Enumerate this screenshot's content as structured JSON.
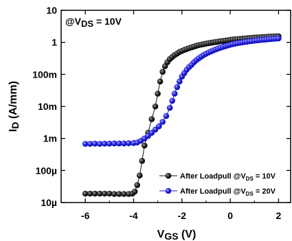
{
  "chart_data": {
    "type": "scatter",
    "annotation": {
      "text": "@V",
      "sub": "DS",
      "suffix": " = 10V"
    },
    "xlabel": {
      "main": "V",
      "sub": "GS",
      "suffix": " (V)"
    },
    "ylabel": {
      "main": "I",
      "sub": "D",
      "suffix": " (A/mm)"
    },
    "xlim": [
      -7,
      2.5
    ],
    "ylim": [
      1e-05,
      10
    ],
    "y_scale": "log",
    "x_ticks": [
      {
        "value": -6,
        "label": "-6"
      },
      {
        "value": -4,
        "label": "-4"
      },
      {
        "value": -2,
        "label": "-2"
      },
      {
        "value": 0,
        "label": "0"
      },
      {
        "value": 2,
        "label": "2"
      }
    ],
    "y_ticks": [
      {
        "value": 10,
        "label": "10"
      },
      {
        "value": 1,
        "label": "1"
      },
      {
        "value": 0.1,
        "label": "100m"
      },
      {
        "value": 0.01,
        "label": "10m"
      },
      {
        "value": 0.001,
        "label": "1m"
      },
      {
        "value": 0.0001,
        "label": "100µ"
      },
      {
        "value": 1e-05,
        "label": "10µ"
      }
    ],
    "legend_position": "bottom-right",
    "series": [
      {
        "name": {
          "prefix": "After Loadpull @V",
          "sub": "DS",
          "suffix": " = 10V"
        },
        "color": "#111111",
        "points": [
          [
            -6.0,
            1.9e-05
          ],
          [
            -5.8,
            1.9e-05
          ],
          [
            -5.6,
            1.9e-05
          ],
          [
            -5.4,
            1.9e-05
          ],
          [
            -5.2,
            1.9e-05
          ],
          [
            -5.0,
            1.9e-05
          ],
          [
            -4.8,
            1.85e-05
          ],
          [
            -4.6,
            1.85e-05
          ],
          [
            -4.4,
            1.85e-05
          ],
          [
            -4.2,
            1.85e-05
          ],
          [
            -4.05,
            1.9e-05
          ],
          [
            -3.95,
            2.2e-05
          ],
          [
            -3.85,
            3.5e-05
          ],
          [
            -3.75,
            7e-05
          ],
          [
            -3.65,
            0.0002
          ],
          [
            -3.55,
            0.0006
          ],
          [
            -3.4,
            0.0015
          ],
          [
            -3.25,
            0.004
          ],
          [
            -3.1,
            0.01
          ],
          [
            -3.0,
            0.025
          ],
          [
            -2.9,
            0.06
          ],
          [
            -2.8,
            0.12
          ],
          [
            -2.7,
            0.18
          ],
          [
            -2.6,
            0.24
          ],
          [
            -2.5,
            0.3
          ],
          [
            -2.4,
            0.35
          ],
          [
            -2.3,
            0.4
          ],
          [
            -2.2,
            0.45
          ],
          [
            -2.1,
            0.5
          ],
          [
            -2.0,
            0.54
          ],
          [
            -1.9,
            0.58
          ],
          [
            -1.8,
            0.62
          ],
          [
            -1.7,
            0.66
          ],
          [
            -1.6,
            0.7
          ],
          [
            -1.5,
            0.74
          ],
          [
            -1.4,
            0.78
          ],
          [
            -1.3,
            0.82
          ],
          [
            -1.2,
            0.85
          ],
          [
            -1.1,
            0.88
          ],
          [
            -1.0,
            0.91
          ],
          [
            -0.9,
            0.94
          ],
          [
            -0.8,
            0.97
          ],
          [
            -0.7,
            1.0
          ],
          [
            -0.6,
            1.02
          ],
          [
            -0.5,
            1.05
          ],
          [
            -0.4,
            1.08
          ],
          [
            -0.3,
            1.1
          ],
          [
            -0.2,
            1.13
          ],
          [
            -0.1,
            1.16
          ],
          [
            0.0,
            1.19
          ],
          [
            0.1,
            1.22
          ],
          [
            0.2,
            1.24
          ],
          [
            0.3,
            1.26
          ],
          [
            0.4,
            1.28
          ],
          [
            0.5,
            1.3
          ],
          [
            0.6,
            1.32
          ],
          [
            0.7,
            1.34
          ],
          [
            0.8,
            1.36
          ],
          [
            0.9,
            1.38
          ],
          [
            1.0,
            1.4
          ],
          [
            1.1,
            1.42
          ],
          [
            1.2,
            1.43
          ],
          [
            1.3,
            1.45
          ],
          [
            1.4,
            1.47
          ],
          [
            1.5,
            1.48
          ],
          [
            1.6,
            1.5
          ],
          [
            1.7,
            1.51
          ],
          [
            1.8,
            1.52
          ],
          [
            1.9,
            1.54
          ],
          [
            2.0,
            1.55
          ]
        ]
      },
      {
        "name": {
          "prefix": "After Loadpull @V",
          "sub": "DS",
          "suffix": " = 20V"
        },
        "color": "#1a1adc",
        "points": [
          [
            -6.0,
            0.00068
          ],
          [
            -5.8,
            0.00068
          ],
          [
            -5.6,
            0.00069
          ],
          [
            -5.4,
            0.00068
          ],
          [
            -5.2,
            0.00069
          ],
          [
            -5.0,
            0.00069
          ],
          [
            -4.8,
            0.0007
          ],
          [
            -4.6,
            0.0007
          ],
          [
            -4.4,
            0.0007
          ],
          [
            -4.2,
            0.00071
          ],
          [
            -4.0,
            0.00072
          ],
          [
            -3.85,
            0.00075
          ],
          [
            -3.7,
            0.00085
          ],
          [
            -3.55,
            0.001
          ],
          [
            -3.4,
            0.0012
          ],
          [
            -3.25,
            0.0015
          ],
          [
            -3.1,
            0.0019
          ],
          [
            -2.95,
            0.0024
          ],
          [
            -2.8,
            0.0033
          ],
          [
            -2.65,
            0.005
          ],
          [
            -2.5,
            0.009
          ],
          [
            -2.4,
            0.015
          ],
          [
            -2.3,
            0.025
          ],
          [
            -2.2,
            0.04
          ],
          [
            -2.1,
            0.06
          ],
          [
            -2.0,
            0.085
          ],
          [
            -1.9,
            0.11
          ],
          [
            -1.8,
            0.14
          ],
          [
            -1.7,
            0.17
          ],
          [
            -1.6,
            0.2
          ],
          [
            -1.5,
            0.24
          ],
          [
            -1.4,
            0.28
          ],
          [
            -1.3,
            0.32
          ],
          [
            -1.2,
            0.36
          ],
          [
            -1.1,
            0.4
          ],
          [
            -1.0,
            0.44
          ],
          [
            -0.9,
            0.48
          ],
          [
            -0.8,
            0.52
          ],
          [
            -0.7,
            0.56
          ],
          [
            -0.6,
            0.6
          ],
          [
            -0.5,
            0.64
          ],
          [
            -0.4,
            0.68
          ],
          [
            -0.3,
            0.72
          ],
          [
            -0.2,
            0.76
          ],
          [
            -0.1,
            0.8
          ],
          [
            0.0,
            0.84
          ],
          [
            0.1,
            0.88
          ],
          [
            0.2,
            0.91
          ],
          [
            0.3,
            0.94
          ],
          [
            0.4,
            0.97
          ],
          [
            0.5,
            1.0
          ],
          [
            0.6,
            1.03
          ],
          [
            0.7,
            1.05
          ],
          [
            0.8,
            1.08
          ],
          [
            0.9,
            1.1
          ],
          [
            1.0,
            1.13
          ],
          [
            1.1,
            1.15
          ],
          [
            1.2,
            1.17
          ],
          [
            1.3,
            1.19
          ],
          [
            1.4,
            1.21
          ],
          [
            1.5,
            1.23
          ],
          [
            1.6,
            1.25
          ],
          [
            1.7,
            1.27
          ],
          [
            1.8,
            1.29
          ],
          [
            1.9,
            1.31
          ],
          [
            2.0,
            1.33
          ]
        ]
      }
    ]
  }
}
